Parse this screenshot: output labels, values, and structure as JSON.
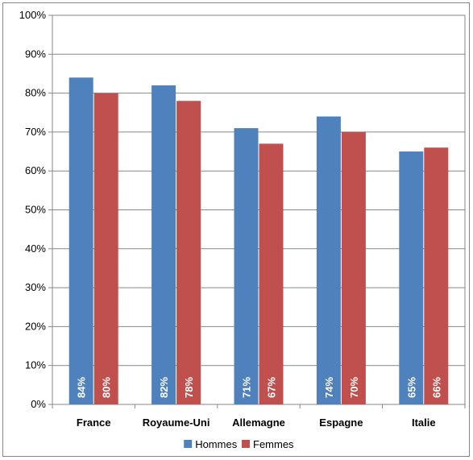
{
  "chart_data": {
    "type": "bar",
    "categories": [
      "France",
      "Royaume-Uni",
      "Allemagne",
      "Espagne",
      "Italie"
    ],
    "series": [
      {
        "name": "Hommes",
        "values": [
          84,
          82,
          71,
          74,
          65
        ],
        "labels": [
          "84%",
          "82%",
          "71%",
          "74%",
          "65%"
        ],
        "color": "#4f81bd"
      },
      {
        "name": "Femmes",
        "values": [
          80,
          78,
          67,
          70,
          66
        ],
        "labels": [
          "80%",
          "78%",
          "67%",
          "70%",
          "66%"
        ],
        "color": "#c0504d"
      }
    ],
    "yticks": [
      "0%",
      "10%",
      "20%",
      "30%",
      "40%",
      "50%",
      "60%",
      "70%",
      "80%",
      "90%",
      "100%"
    ],
    "ylim": [
      0,
      100
    ],
    "grid": true,
    "legend_position": "bottom",
    "title": "",
    "xlabel": "",
    "ylabel": ""
  }
}
